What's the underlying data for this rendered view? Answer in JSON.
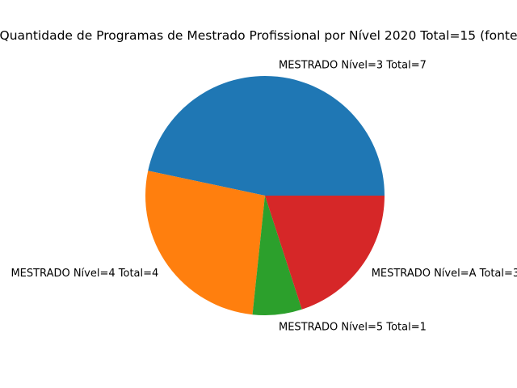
{
  "chart_data": {
    "type": "pie",
    "title": "Quantidade de Programas de Mestrado Profissional por Nível  2020 Total=15 (fonte",
    "slices": [
      {
        "label": "MESTRADO  Nível=3 Total=7",
        "value": 7,
        "color": "#1f77b4"
      },
      {
        "label": "MESTRADO  Nível=4 Total=4",
        "value": 4,
        "color": "#ff7f0e"
      },
      {
        "label": "MESTRADO  Nível=5 Total=1",
        "value": 1,
        "color": "#2ca02c"
      },
      {
        "label": "MESTRADO  Nível=A Total=3",
        "value": 3,
        "color": "#d62728"
      }
    ],
    "start_angle_deg": 0,
    "direction": "counterclockwise",
    "legend": "none"
  }
}
